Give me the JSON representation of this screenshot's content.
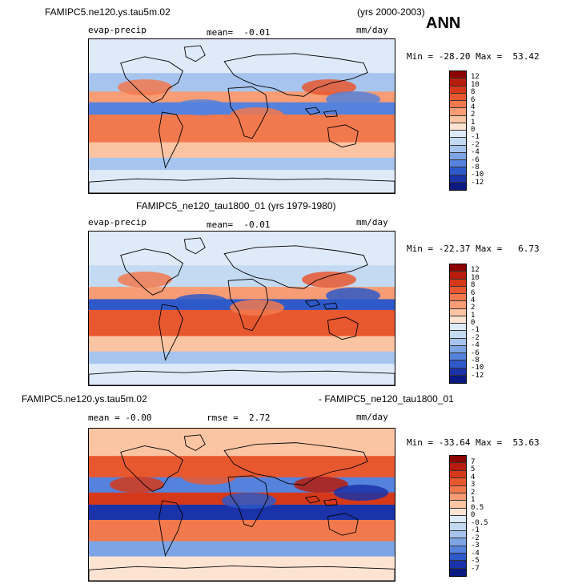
{
  "header": {
    "case1": "FAMIPC5.ne120.ys.tau5m.02",
    "years1": "(yrs 2000-2003)",
    "season": "ANN"
  },
  "panels": [
    {
      "title": "",
      "variable": "evap-precip",
      "mean_label": "mean=  -0.01",
      "units": "mm/day",
      "minmax": "Min = -28.20 Max =  53.42",
      "levels": [
        "12",
        "10",
        "8",
        "6",
        "4",
        "2",
        "1",
        "0",
        "-1",
        "-2",
        "-4",
        "-6",
        "-8",
        "-10",
        "-12"
      ],
      "colors": [
        "#8b0000",
        "#b71c0c",
        "#d6391a",
        "#e8582f",
        "#f2794d",
        "#f79c74",
        "#fbc4a3",
        "#fde4d2",
        "#dfeaf8",
        "#c4daf3",
        "#a6c4ee",
        "#7da5e6",
        "#5582dc",
        "#2e59c9",
        "#1a33a8",
        "#0a1a80"
      ]
    },
    {
      "title": "FAMIPC5_ne120_tau1800_01 (yrs 1979-1980)",
      "variable": "evap-precip",
      "mean_label": "mean=  -0.01",
      "units": "mm/day",
      "minmax": "Min = -22.37 Max =   6.73",
      "levels": [
        "12",
        "10",
        "8",
        "6",
        "4",
        "2",
        "1",
        "0",
        "-1",
        "-2",
        "-4",
        "-6",
        "-8",
        "-10",
        "-12"
      ],
      "colors": [
        "#8b0000",
        "#b71c0c",
        "#d6391a",
        "#e8582f",
        "#f2794d",
        "#f79c74",
        "#fbc4a3",
        "#fde4d2",
        "#dfeaf8",
        "#c4daf3",
        "#a6c4ee",
        "#7da5e6",
        "#5582dc",
        "#2e59c9",
        "#1a33a8",
        "#0a1a80"
      ]
    },
    {
      "title_left": "FAMIPC5.ne120.ys.tau5m.02",
      "title_right": "- FAMIPC5_ne120_tau1800_01",
      "mean_label": "mean = -0.00",
      "rmse_label": "rmse =  2.72",
      "units": "mm/day",
      "minmax": "Min = -33.64 Max =  53.63",
      "levels": [
        "7",
        "5",
        "4",
        "3",
        "2",
        "1",
        "0.5",
        "0",
        "-0.5",
        "-1",
        "-2",
        "-3",
        "-4",
        "-5",
        "-7"
      ],
      "colors": [
        "#8b0000",
        "#b71c0c",
        "#d6391a",
        "#e8582f",
        "#f2794d",
        "#f79c74",
        "#fbc4a3",
        "#fde4d2",
        "#dfeaf8",
        "#c4daf3",
        "#a6c4ee",
        "#7da5e6",
        "#5582dc",
        "#2e59c9",
        "#1a33a8",
        "#0a1a80"
      ]
    }
  ]
}
